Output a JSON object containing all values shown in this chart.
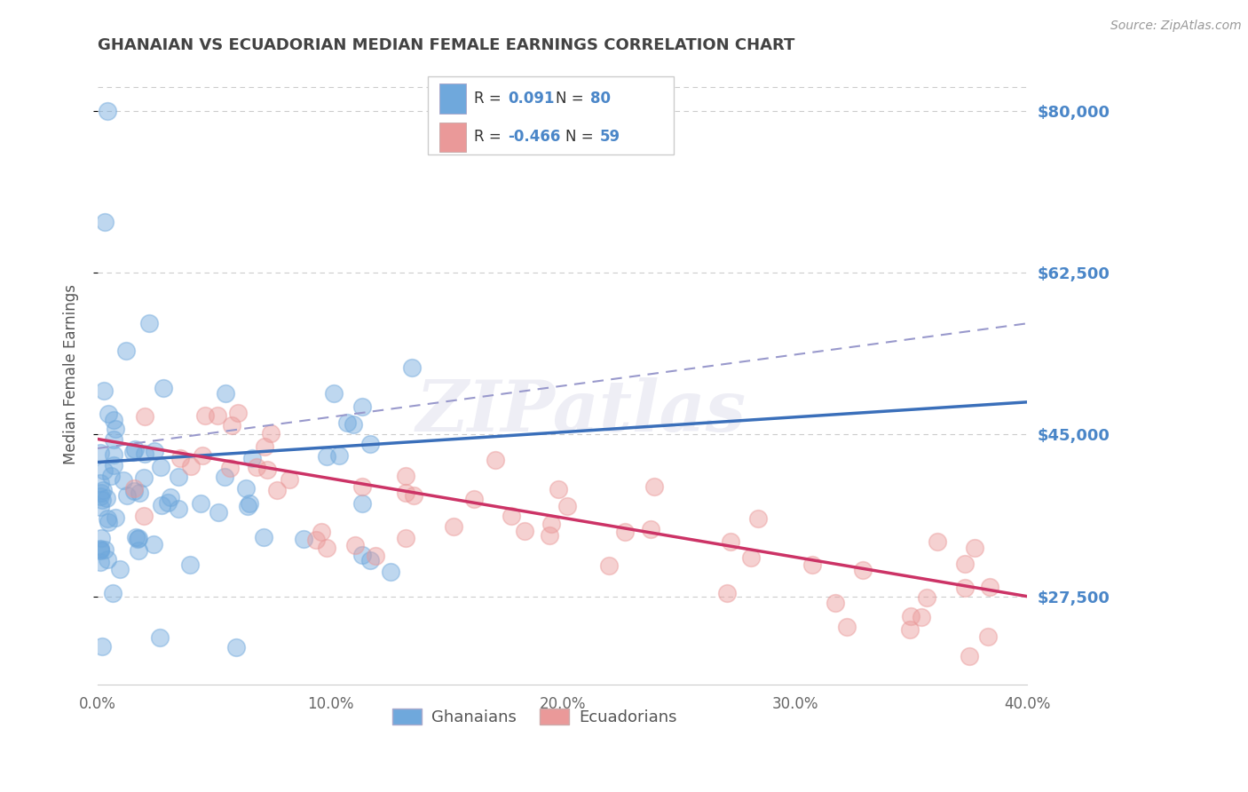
{
  "title": "GHANAIAN VS ECUADORIAN MEDIAN FEMALE EARNINGS CORRELATION CHART",
  "source": "Source: ZipAtlas.com",
  "ylabel": "Median Female Earnings",
  "xlim": [
    0.0,
    0.4
  ],
  "ylim": [
    18000,
    85000
  ],
  "yticks": [
    27500,
    45000,
    62500,
    80000
  ],
  "ytick_labels": [
    "$27,500",
    "$45,000",
    "$62,500",
    "$80,000"
  ],
  "xtick_labels": [
    "0.0%",
    "10.0%",
    "20.0%",
    "30.0%",
    "40.0%"
  ],
  "xticks": [
    0.0,
    0.1,
    0.2,
    0.3,
    0.4
  ],
  "ghanaian_color": "#6fa8dc",
  "ecuadorian_color": "#ea9999",
  "ghanaian_line_color": "#3a6fba",
  "ecuadorian_line_color": "#cc3366",
  "dashed_line_color": "#9999cc",
  "title_color": "#434343",
  "tick_label_color": "#4a86c8",
  "source_color": "#999999",
  "background_color": "#ffffff",
  "grid_color": "#cccccc",
  "ghana_line_x0": 0.0,
  "ghana_line_y0": 42000,
  "ghana_line_x1": 0.4,
  "ghana_line_y1": 48500,
  "ecu_line_x0": 0.0,
  "ecu_line_y0": 44500,
  "ecu_line_x1": 0.4,
  "ecu_line_y1": 27500,
  "dash_line_x0": 0.0,
  "dash_line_y0": 43500,
  "dash_line_x1": 0.4,
  "dash_line_y1": 57000
}
